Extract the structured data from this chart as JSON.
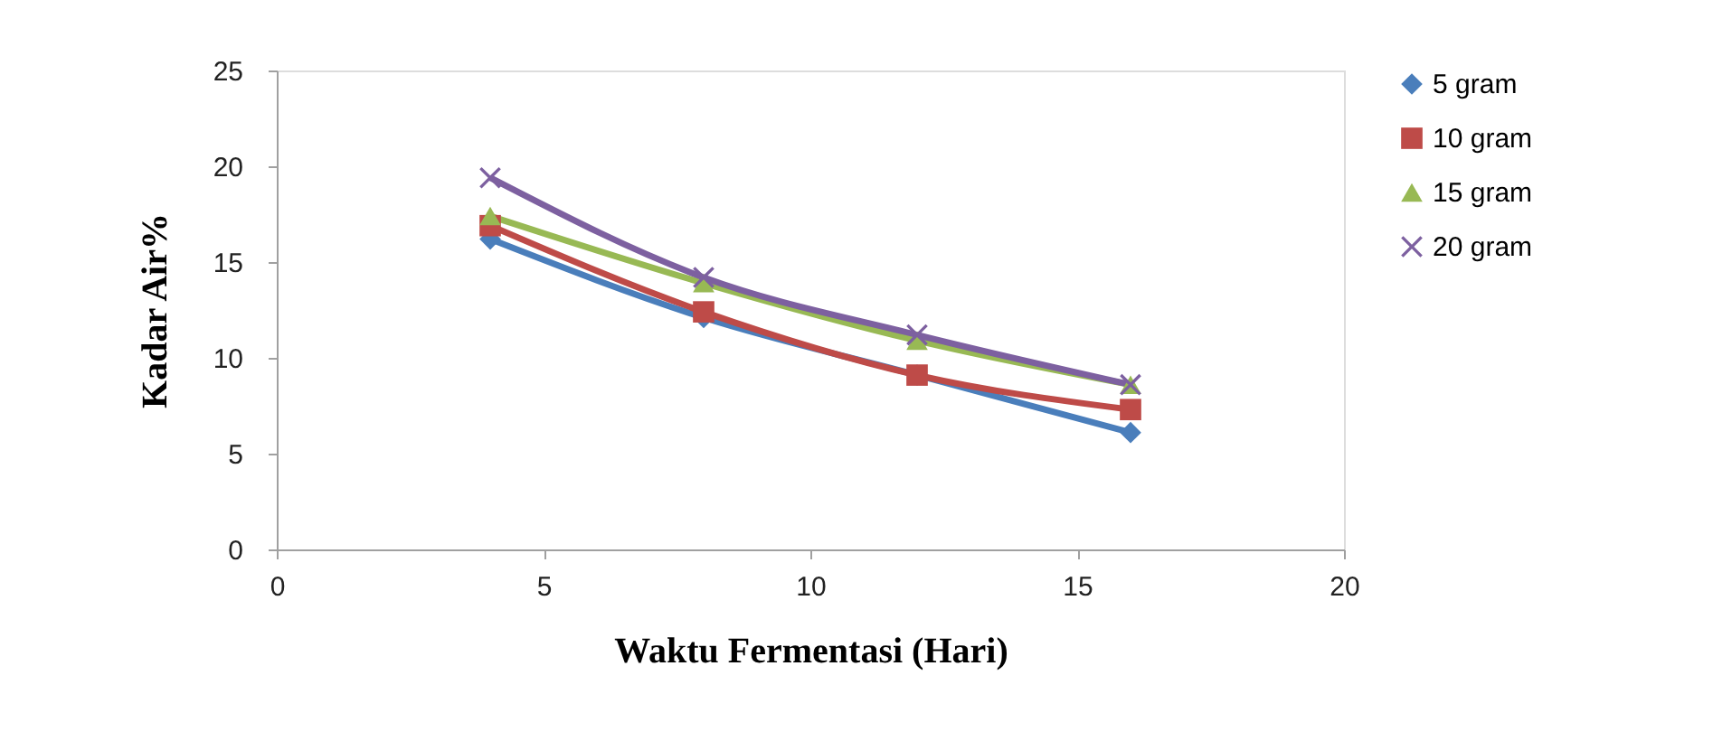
{
  "chart_data": {
    "type": "line",
    "xlabel": "Waktu Fermentasi (Hari)",
    "ylabel": "Kadar Air%",
    "x": [
      4,
      8,
      12,
      16
    ],
    "series": [
      {
        "name": "5 gram",
        "color": "#4a7ebb",
        "marker": "diamond",
        "values": [
          16.2,
          12.1,
          9.1,
          6.1
        ]
      },
      {
        "name": "10 gram",
        "color": "#be4b48",
        "marker": "square",
        "values": [
          16.9,
          12.4,
          9.1,
          7.3
        ]
      },
      {
        "name": "15 gram",
        "color": "#98b954",
        "marker": "triangle",
        "values": [
          17.4,
          13.9,
          10.9,
          8.6
        ]
      },
      {
        "name": "20 gram",
        "color": "#7d60a0",
        "marker": "cross",
        "values": [
          19.4,
          14.2,
          11.2,
          8.6
        ]
      }
    ],
    "xlim": [
      0,
      20
    ],
    "xticks": [
      0,
      5,
      10,
      15,
      20
    ],
    "ylim": [
      0,
      25
    ],
    "yticks": [
      0,
      5,
      10,
      15,
      20,
      25
    ],
    "grid": false,
    "legend": "right",
    "line_style": "solid"
  }
}
